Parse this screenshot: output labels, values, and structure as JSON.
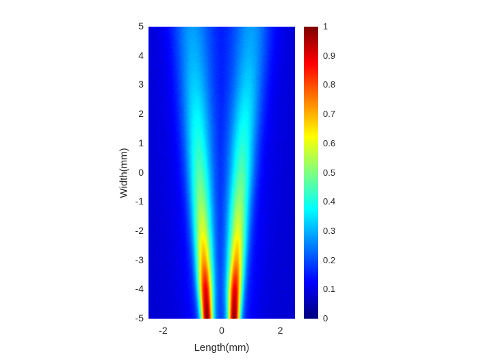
{
  "chart_data": {
    "type": "heatmap",
    "xlabel": "Length(mm)",
    "ylabel": "Width(mm)",
    "xlim": [
      -2.5,
      2.5
    ],
    "ylim": [
      -5,
      5
    ],
    "xticks": [
      "-2",
      "0",
      "2"
    ],
    "xtick_values": [
      -2,
      0,
      2
    ],
    "yticks": [
      "5",
      "4",
      "3",
      "2",
      "1",
      "0",
      "-1",
      "-2",
      "-3",
      "-4",
      "-5"
    ],
    "ytick_values": [
      5,
      4,
      3,
      2,
      1,
      0,
      -1,
      -2,
      -3,
      -4,
      -5
    ],
    "colormap": "jet",
    "clim": [
      0,
      1
    ],
    "colorbar_ticks": [
      "1",
      "0.9",
      "0.8",
      "0.7",
      "0.6",
      "0.5",
      "0.4",
      "0.3",
      "0.2",
      "0.1",
      "0"
    ],
    "colorbar_tick_values": [
      1,
      0.9,
      0.8,
      0.7,
      0.6,
      0.5,
      0.4,
      0.3,
      0.2,
      0.1,
      0
    ],
    "background_level": 0.08,
    "center_gap_level": 0.12,
    "jet_profiles": [
      {
        "y": -5,
        "left_center": -0.5,
        "right_center": 0.42,
        "peak": 1.0,
        "sigma": 0.14
      },
      {
        "y": -4,
        "left_center": -0.55,
        "right_center": 0.45,
        "peak": 0.9,
        "sigma": 0.17
      },
      {
        "y": -3,
        "left_center": -0.6,
        "right_center": 0.5,
        "peak": 0.72,
        "sigma": 0.2
      },
      {
        "y": -2,
        "left_center": -0.65,
        "right_center": 0.55,
        "peak": 0.6,
        "sigma": 0.23
      },
      {
        "y": -1,
        "left_center": -0.7,
        "right_center": 0.6,
        "peak": 0.52,
        "sigma": 0.26
      },
      {
        "y": 0,
        "left_center": -0.75,
        "right_center": 0.67,
        "peak": 0.46,
        "sigma": 0.29
      },
      {
        "y": 1,
        "left_center": -0.8,
        "right_center": 0.72,
        "peak": 0.41,
        "sigma": 0.32
      },
      {
        "y": 2,
        "left_center": -0.85,
        "right_center": 0.8,
        "peak": 0.37,
        "sigma": 0.35
      },
      {
        "y": 3,
        "left_center": -0.9,
        "right_center": 0.88,
        "peak": 0.33,
        "sigma": 0.38
      },
      {
        "y": 4,
        "left_center": -0.95,
        "right_center": 0.95,
        "peak": 0.3,
        "sigma": 0.42
      },
      {
        "y": 5,
        "left_center": -1.0,
        "right_center": 1.0,
        "peak": 0.28,
        "sigma": 0.45
      }
    ]
  }
}
